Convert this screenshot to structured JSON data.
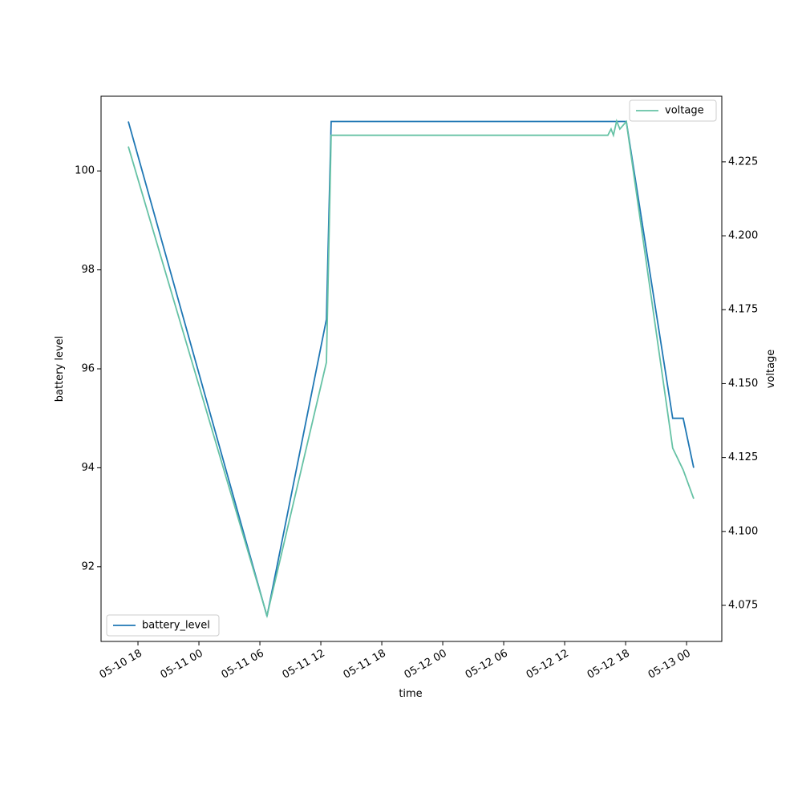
{
  "chart_data": {
    "type": "line",
    "x_label": "time",
    "y_label": "battery level",
    "y2_label": "voltage",
    "xlim": [
      "05-10 14:22",
      "05-13 03:28"
    ],
    "xticks": [
      {
        "value": "05-10 18:00",
        "label": "05-10 18"
      },
      {
        "value": "05-11 00:00",
        "label": "05-11 00"
      },
      {
        "value": "05-11 06:00",
        "label": "05-11 06"
      },
      {
        "value": "05-11 12:00",
        "label": "05-11 12"
      },
      {
        "value": "05-11 18:00",
        "label": "05-11 18"
      },
      {
        "value": "05-12 00:00",
        "label": "05-12 00"
      },
      {
        "value": "05-12 06:00",
        "label": "05-12 06"
      },
      {
        "value": "05-12 12:00",
        "label": "05-12 12"
      },
      {
        "value": "05-12 18:00",
        "label": "05-12 18"
      },
      {
        "value": "05-13 00:00",
        "label": "05-13 00"
      }
    ],
    "ylim": [
      90.49,
      101.51
    ],
    "yticks": [
      92,
      94,
      96,
      98,
      100
    ],
    "y2lim": [
      4.0628,
      4.2472
    ],
    "y2ticks": [
      4.075,
      {
        "value": 4.1,
        "label": "4.100"
      },
      4.125,
      {
        "value": 4.15,
        "label": "4.150"
      },
      4.175,
      {
        "value": 4.2,
        "label": "4.200"
      },
      4.225
    ],
    "series": [
      {
        "name": "battery_level",
        "color": "#1f77b4",
        "legend": "lower left",
        "x": [
          "05-10 17:03",
          "05-11 06:42",
          "05-11 12:33",
          "05-11 13:01",
          "05-12 18:04",
          "05-12 22:38",
          "05-12 23:40",
          "05-13 00:42"
        ],
        "values": [
          101,
          91,
          97,
          101,
          101,
          95,
          95,
          94
        ]
      },
      {
        "name": "voltage",
        "color": "#66c2a5",
        "axis": "y2",
        "legend": "upper right",
        "x": [
          "05-10 17:03",
          "05-11 06:42",
          "05-11 12:33",
          "05-11 13:01",
          "05-12 16:15",
          "05-12 16:34",
          "05-12 16:48",
          "05-12 17:07",
          "05-12 17:26",
          "05-12 18:04",
          "05-12 22:38",
          "05-12 23:40",
          "05-13 00:42"
        ],
        "values": [
          4.2302,
          4.0715,
          4.1572,
          4.234,
          4.234,
          4.2361,
          4.234,
          4.2388,
          4.2361,
          4.2386,
          4.1282,
          4.1208,
          4.1111
        ]
      }
    ]
  }
}
